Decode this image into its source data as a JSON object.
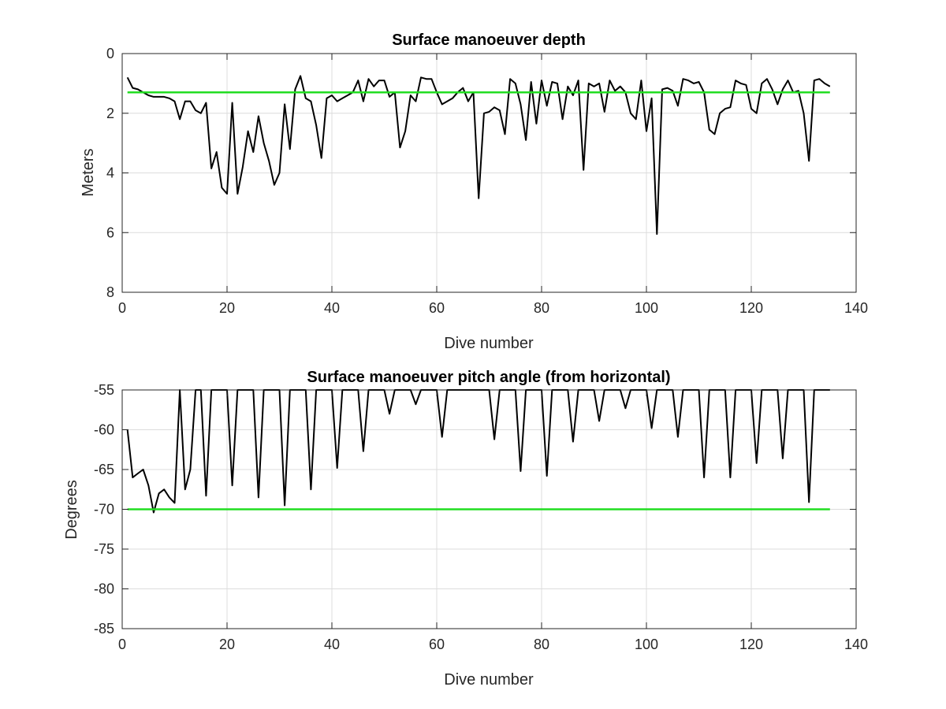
{
  "chart_data": [
    {
      "type": "line",
      "title": "Surface manoeuver depth",
      "xlabel": "Dive number",
      "ylabel": "Meters",
      "xlim": [
        0,
        140
      ],
      "ylim": [
        0,
        8
      ],
      "y_reversed": true,
      "grid": true,
      "xticks": [
        "0",
        "20",
        "40",
        "60",
        "80",
        "100",
        "120",
        "140"
      ],
      "yticks": [
        "0",
        "2",
        "4",
        "6",
        "8"
      ],
      "series": [
        {
          "color": "#000000",
          "x": [
            1,
            2,
            3,
            4,
            5,
            6,
            7,
            8,
            9,
            10,
            11,
            12,
            13,
            14,
            15,
            16,
            17,
            18,
            19,
            20,
            21,
            22,
            23,
            24,
            25,
            26,
            27,
            28,
            29,
            30,
            31,
            32,
            33,
            34,
            35,
            36,
            37,
            38,
            39,
            40,
            41,
            42,
            43,
            44,
            45,
            46,
            47,
            48,
            49,
            50,
            51,
            52,
            53,
            54,
            55,
            56,
            57,
            58,
            59,
            60,
            61,
            62,
            63,
            64,
            65,
            66,
            67,
            68,
            69,
            70,
            71,
            72,
            73,
            74,
            75,
            76,
            77,
            78,
            79,
            80,
            81,
            82,
            83,
            84,
            85,
            86,
            87,
            88,
            89,
            90,
            91,
            92,
            93,
            94,
            95,
            96,
            97,
            98,
            99,
            100,
            101,
            102,
            103,
            104,
            105,
            106,
            107,
            108,
            109,
            110,
            111,
            112,
            113,
            114,
            115,
            116,
            117,
            118,
            119,
            120,
            121,
            122,
            123,
            124,
            125,
            126,
            127,
            128,
            129,
            130,
            131,
            132,
            133,
            134,
            135
          ],
          "values": [
            0.8,
            1.15,
            1.2,
            1.3,
            1.4,
            1.45,
            1.45,
            1.45,
            1.5,
            1.6,
            2.2,
            1.6,
            1.6,
            1.9,
            2.0,
            1.65,
            3.85,
            3.3,
            4.5,
            4.7,
            1.65,
            4.7,
            3.8,
            2.6,
            3.3,
            2.1,
            3.0,
            3.6,
            4.4,
            4.0,
            1.7,
            3.2,
            1.2,
            0.75,
            1.5,
            1.6,
            2.4,
            3.5,
            1.5,
            1.4,
            1.6,
            1.5,
            1.4,
            1.3,
            0.9,
            1.6,
            0.85,
            1.1,
            0.9,
            0.9,
            1.45,
            1.3,
            3.15,
            2.6,
            1.4,
            1.6,
            0.8,
            0.85,
            0.85,
            1.3,
            1.7,
            1.6,
            1.5,
            1.3,
            1.15,
            1.6,
            1.3,
            4.85,
            2.0,
            1.95,
            1.8,
            1.9,
            2.7,
            0.85,
            1.0,
            1.7,
            2.9,
            0.95,
            2.35,
            0.9,
            1.75,
            0.95,
            1.0,
            2.2,
            1.1,
            1.4,
            0.9,
            3.9,
            1.0,
            1.1,
            1.0,
            1.95,
            0.9,
            1.25,
            1.1,
            1.3,
            2.0,
            2.2,
            0.9,
            2.6,
            1.5,
            6.05,
            1.2,
            1.15,
            1.25,
            1.75,
            0.85,
            0.9,
            1.0,
            0.95,
            1.3,
            2.55,
            2.7,
            2.0,
            1.85,
            1.8,
            0.9,
            1.0,
            1.05,
            1.85,
            2.0,
            1.0,
            0.85,
            1.2,
            1.7,
            1.2,
            0.9,
            1.3,
            1.25,
            2.0,
            3.6,
            0.9,
            0.85,
            1.0,
            1.1
          ]
        },
        {
          "color": "#22dd22",
          "x": [
            1,
            135
          ],
          "values": [
            1.3,
            1.3
          ]
        }
      ]
    },
    {
      "type": "line",
      "title": "Surface manoeuver pitch angle (from horizontal)",
      "xlabel": "Dive number",
      "ylabel": "Degrees",
      "xlim": [
        0,
        140
      ],
      "ylim": [
        -85,
        -55
      ],
      "grid": true,
      "xticks": [
        "0",
        "20",
        "40",
        "60",
        "80",
        "100",
        "120",
        "140"
      ],
      "yticks": [
        "-55",
        "-60",
        "-65",
        "-70",
        "-75",
        "-80",
        "-85"
      ],
      "series": [
        {
          "color": "#000000",
          "x": [
            1,
            2,
            3,
            4,
            5,
            6,
            7,
            8,
            9,
            10,
            11,
            12,
            13,
            14,
            15,
            16,
            17,
            18,
            19,
            20,
            21,
            22,
            23,
            24,
            25,
            26,
            27,
            28,
            29,
            30,
            31,
            32,
            33,
            34,
            35,
            36,
            37,
            38,
            39,
            40,
            41,
            42,
            43,
            44,
            45,
            46,
            47,
            48,
            49,
            50,
            51,
            52,
            53,
            54,
            55,
            56,
            57,
            58,
            59,
            60,
            61,
            62,
            63,
            64,
            65,
            66,
            67,
            68,
            69,
            70,
            71,
            72,
            73,
            74,
            75,
            76,
            77,
            78,
            79,
            80,
            81,
            82,
            83,
            84,
            85,
            86,
            87,
            88,
            89,
            90,
            91,
            92,
            93,
            94,
            95,
            96,
            97,
            98,
            99,
            100,
            101,
            102,
            103,
            104,
            105,
            106,
            107,
            108,
            109,
            110,
            111,
            112,
            113,
            114,
            115,
            116,
            117,
            118,
            119,
            120,
            121,
            122,
            123,
            124,
            125,
            126,
            127,
            128,
            129,
            130,
            131,
            132,
            133,
            134,
            135
          ],
          "values": [
            -60,
            -66,
            -65.5,
            -65,
            -67,
            -70.4,
            -68,
            -67.5,
            -68.5,
            -69.2,
            -55,
            -67.5,
            -65,
            -55,
            -55,
            -68.3,
            -55,
            -55,
            -55,
            -55,
            -67,
            -55,
            -55,
            -55,
            -55,
            -68.5,
            -55,
            -55,
            -55,
            -55,
            -69.5,
            -55,
            -55,
            -55,
            -55,
            -67.5,
            -55,
            -55,
            -55,
            -55,
            -64.8,
            -55,
            -55,
            -55,
            -55,
            -62.7,
            -55,
            -55,
            -55,
            -55,
            -58,
            -55,
            -55,
            -55,
            -55,
            -56.8,
            -55,
            -55,
            -55,
            -55,
            -60.9,
            -55,
            -55,
            -55,
            -55,
            -55,
            -55,
            -55,
            -55,
            -55,
            -61.2,
            -55,
            -55,
            -55,
            -55,
            -65.2,
            -55,
            -55,
            -55,
            -55,
            -65.8,
            -55,
            -55,
            -55,
            -55,
            -61.5,
            -55,
            -55,
            -55,
            -55,
            -58.9,
            -55,
            -55,
            -55,
            -55,
            -57.3,
            -55,
            -55,
            -55,
            -55,
            -59.8,
            -55,
            -55,
            -55,
            -55,
            -60.9,
            -55,
            -55,
            -55,
            -55,
            -66,
            -55,
            -55,
            -55,
            -55,
            -66,
            -55,
            -55,
            -55,
            -55,
            -64.2,
            -55,
            -55,
            -55,
            -55,
            -63.6,
            -55,
            -55,
            -55,
            -55,
            -69.1,
            -55,
            -55,
            -55,
            -55
          ]
        },
        {
          "color": "#22dd22",
          "x": [
            1,
            135
          ],
          "values": [
            -70,
            -70
          ]
        }
      ]
    }
  ]
}
